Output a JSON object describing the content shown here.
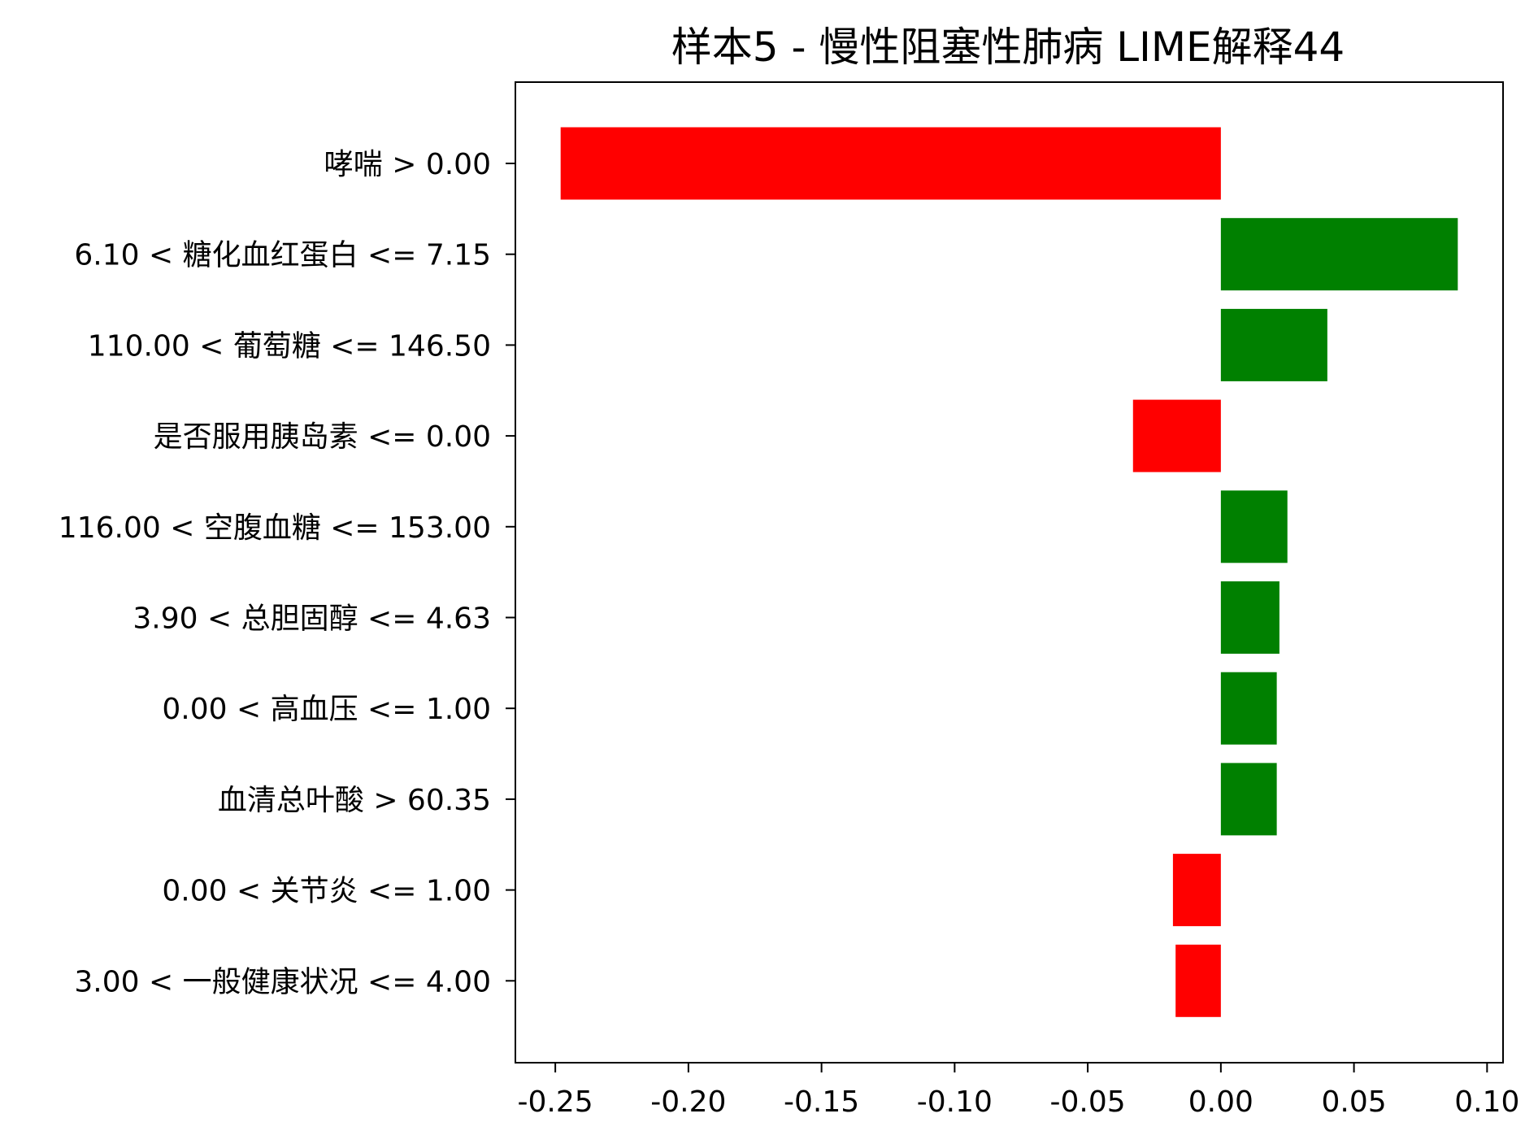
{
  "chart_data": {
    "type": "bar",
    "orientation": "horizontal",
    "title": "样本5 - 慢性阻塞性肺病 LIME解释44",
    "xlabel": "",
    "ylabel": "",
    "xlim": [
      -0.265,
      0.106
    ],
    "xticks": [
      -0.25,
      -0.2,
      -0.15,
      -0.1,
      -0.05,
      0.0,
      0.05,
      0.1
    ],
    "xtick_labels": [
      "-0.25",
      "-0.20",
      "-0.15",
      "-0.10",
      "-0.05",
      "0.00",
      "0.05",
      "0.10"
    ],
    "grid": false,
    "legend": "none",
    "colors": {
      "positive": "#008000",
      "negative": "#ff0000"
    },
    "categories": [
      "哮喘 > 0.00",
      "6.10 < 糖化血红蛋白 <= 7.15",
      "110.00 < 葡萄糖 <= 146.50",
      "是否服用胰岛素 <= 0.00",
      "116.00 < 空腹血糖 <= 153.00",
      "3.90 < 总胆固醇 <= 4.63",
      "0.00 < 高血压 <= 1.00",
      "血清总叶酸 > 60.35",
      "0.00 < 关节炎 <= 1.00",
      "3.00 < 一般健康状况 <= 4.00"
    ],
    "values": [
      -0.248,
      0.089,
      0.04,
      -0.033,
      0.025,
      0.022,
      0.021,
      0.021,
      -0.018,
      -0.017
    ]
  }
}
